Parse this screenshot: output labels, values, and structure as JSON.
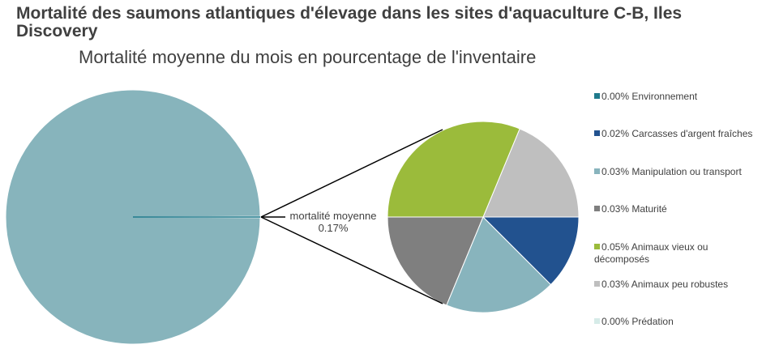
{
  "chart_data": {
    "type": "pie-of-pie",
    "title": "Mortalité des saumons atlantiques d'élevage dans les sites d'aquaculture C-B, Iles Discovery",
    "subtitle": "Mortalité moyenne du mois en pourcentage de l'inventaire",
    "main_pie": {
      "slices": [
        {
          "value": 99.83,
          "color": "#87b4bc"
        },
        {
          "value": 0.17,
          "color": "#1f7a8c"
        }
      ]
    },
    "connector_label": {
      "name": "mortalité moyenne",
      "value": "0.17%"
    },
    "series": [
      {
        "name": "Environnement",
        "label": "0.00%",
        "value": 0.0,
        "color": "#1f7a8c"
      },
      {
        "name": "Carcasses d'argent fraîches",
        "label": "0.02%",
        "value": 0.02,
        "color": "#22528f"
      },
      {
        "name": "Manipulation ou transport",
        "label": "0.03%",
        "value": 0.03,
        "color": "#88b4bd"
      },
      {
        "name": "Maturité",
        "label": "0.03%",
        "value": 0.03,
        "color": "#7f7f7f"
      },
      {
        "name": "Animaux vieux ou décomposés",
        "label": "0.05%",
        "value": 0.05,
        "color": "#9bbb3b"
      },
      {
        "name": "Animaux peu robustes",
        "label": "0.03%",
        "value": 0.03,
        "color": "#bfbfbf"
      },
      {
        "name": "Prédation",
        "label": "0.00%",
        "value": 0.0,
        "color": "#d6ebe8"
      }
    ],
    "legend": "right"
  }
}
